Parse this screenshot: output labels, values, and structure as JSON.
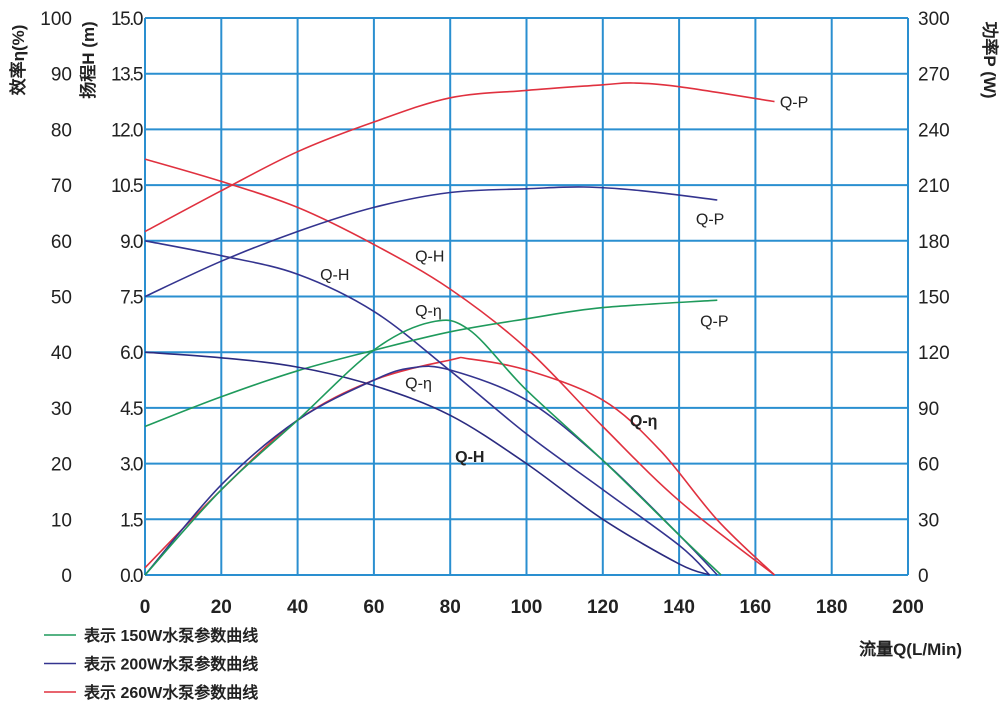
{
  "chart_data": {
    "type": "line",
    "xlabel": "流量Q(L/Min)",
    "xlim": [
      0,
      200
    ],
    "xticks": [
      "0",
      "20",
      "40",
      "60",
      "80",
      "100",
      "120",
      "140",
      "160",
      "180",
      "200"
    ],
    "grid": true,
    "grid_color": "#2a8fd0",
    "axes": {
      "eff": {
        "label": "效率η(%)",
        "lim": [
          0,
          100
        ],
        "ticks": [
          "0",
          "10",
          "20",
          "30",
          "40",
          "50",
          "60",
          "70",
          "80",
          "90",
          "100"
        ]
      },
      "head": {
        "label": "扬程H (m)",
        "lim": [
          0,
          15
        ],
        "ticks": [
          "0.0",
          "1.5",
          "3.0",
          "4.5",
          "6.0",
          "7.5",
          "9.0",
          "10.5",
          "12.0",
          "13.5",
          "15.0"
        ]
      },
      "power": {
        "label": "功率P (W)",
        "lim": [
          0,
          300
        ],
        "ticks": [
          "0",
          "30",
          "60",
          "90",
          "120",
          "150",
          "180",
          "210",
          "240",
          "270",
          "300"
        ]
      }
    },
    "legend": {
      "placement": "bottom-left",
      "entries": [
        {
          "label": "表示 150W水泵参数曲线",
          "color": "#1f9a5c"
        },
        {
          "label": "表示 200W水泵参数曲线",
          "color": "#34348f"
        },
        {
          "label": "表示 260W水泵参数曲线",
          "color": "#e0313f"
        }
      ]
    },
    "series": [
      {
        "pump": "260W",
        "name": "Q-P",
        "axis": "power",
        "color": "#e0313f",
        "label_color": "#222222",
        "x": [
          0,
          20,
          40,
          60,
          80,
          100,
          120,
          128,
          140,
          165
        ],
        "y": [
          185,
          207,
          228,
          244,
          257,
          261,
          264,
          265,
          263,
          255
        ],
        "label_at": [
          166.4,
          255
        ]
      },
      {
        "pump": "260W",
        "name": "Q-H",
        "axis": "head",
        "color": "#e0313f",
        "label_color": "#222222",
        "x": [
          0,
          20,
          40,
          60,
          80,
          100,
          120,
          140,
          165
        ],
        "y": [
          11.2,
          10.6,
          9.9,
          8.9,
          7.7,
          6.1,
          4.0,
          2.0,
          0
        ],
        "label_at": [
          70.8,
          8.6
        ]
      },
      {
        "pump": "260W",
        "name": "Q-η",
        "axis": "eff",
        "color": "#e0313f",
        "label_color": "#e0313f",
        "x": [
          0,
          20,
          40,
          60,
          80,
          85,
          100,
          120,
          135,
          150,
          165
        ],
        "y": [
          1.3,
          15.3,
          27.8,
          35,
          38.6,
          38.8,
          36.8,
          31.4,
          22.4,
          9.9,
          0
        ],
        "label_at": [
          127.1,
          27.8
        ]
      },
      {
        "pump": "200W",
        "name": "Q-P",
        "axis": "power",
        "color": "#34348f",
        "label_color": "#222222",
        "x": [
          0,
          20,
          40,
          60,
          80,
          100,
          115,
          130,
          150
        ],
        "y": [
          150,
          169,
          185,
          198,
          206,
          208,
          209,
          207,
          202
        ],
        "label_at": [
          144.4,
          192
        ]
      },
      {
        "pump": "200W",
        "name": "Q-H",
        "axis": "head",
        "color": "#34348f",
        "label_color": "#222222",
        "x": [
          0,
          20,
          40,
          60,
          80,
          100,
          120,
          140,
          148
        ],
        "y": [
          9.0,
          8.6,
          8.1,
          7.1,
          5.5,
          3.8,
          2.3,
          0.8,
          0
        ],
        "label_at": [
          45.9,
          8.1
        ]
      },
      {
        "pump": "200W",
        "name": "Q-η",
        "axis": "eff",
        "color": "#34348f",
        "label_color": "#222222",
        "x": [
          0,
          20,
          40,
          60,
          70,
          80,
          100,
          120,
          140,
          150
        ],
        "y": [
          0,
          16.2,
          27.8,
          35,
          37.2,
          36.8,
          31.4,
          20.6,
          7.2,
          0
        ],
        "label_at": [
          68.2,
          34.6
        ]
      },
      {
        "pump": "150W",
        "name": "Q-P",
        "axis": "power",
        "color": "#1f9a5c",
        "label_color": "#222222",
        "x": [
          0,
          20,
          40,
          60,
          80,
          100,
          120,
          150
        ],
        "y": [
          80,
          96,
          110,
          121,
          131,
          138,
          144,
          148
        ],
        "label_at": [
          145.5,
          137
        ]
      },
      {
        "pump": "150W",
        "name": "Q-H",
        "axis": "head",
        "color": "#2b2b80",
        "label_color": "#2b2b80",
        "x": [
          0,
          20,
          40,
          60,
          80,
          100,
          120,
          140,
          148
        ],
        "y": [
          6.0,
          5.85,
          5.6,
          5.1,
          4.3,
          3.0,
          1.5,
          0.3,
          0
        ],
        "label_at": [
          81.3,
          3.2
        ]
      },
      {
        "pump": "150W",
        "name": "Q-η",
        "axis": "eff",
        "color": "#1f9a5c",
        "label_color": "#222222",
        "x": [
          0,
          20,
          40,
          60,
          75,
          85,
          100,
          120,
          140,
          151
        ],
        "y": [
          0,
          15.3,
          27.8,
          40.4,
          45.4,
          44,
          33.2,
          20.6,
          7.2,
          0
        ],
        "label_at": [
          70.8,
          47.6
        ]
      }
    ]
  }
}
